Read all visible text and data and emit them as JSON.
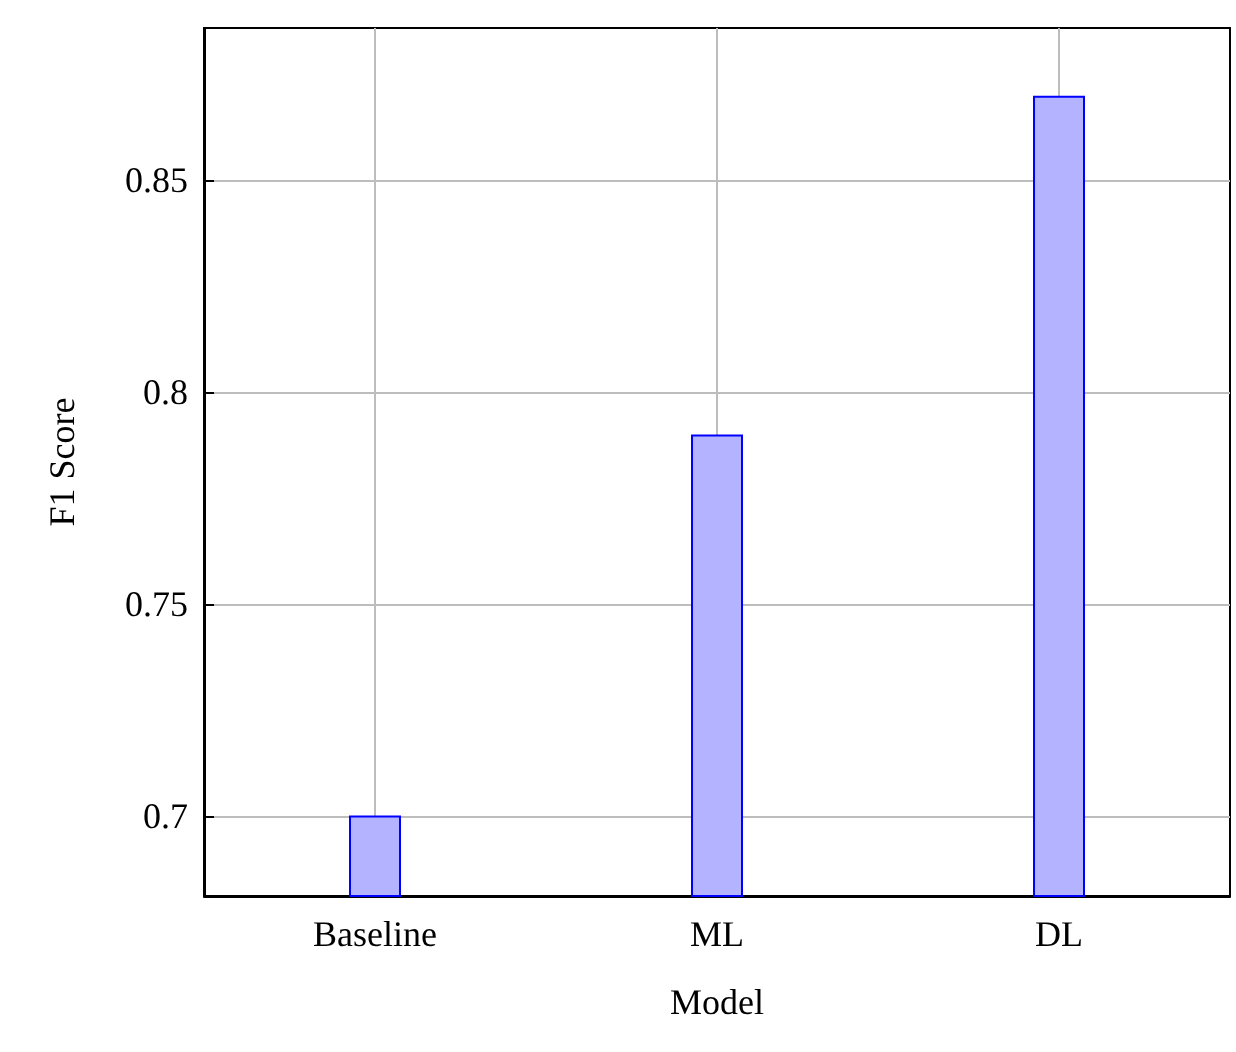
{
  "chart_data": {
    "type": "bar",
    "xlabel": "Model",
    "ylabel": "F1 Score",
    "categories": [
      "Baseline",
      "ML",
      "DL"
    ],
    "series": [
      {
        "color": "#b3b3ff",
        "values": [
          0.7,
          0.79,
          0.87
        ]
      }
    ],
    "ylim": [
      0.681,
      0.886
    ],
    "yticks": [
      0.7,
      0.75,
      0.8,
      0.85
    ],
    "grid": true
  }
}
